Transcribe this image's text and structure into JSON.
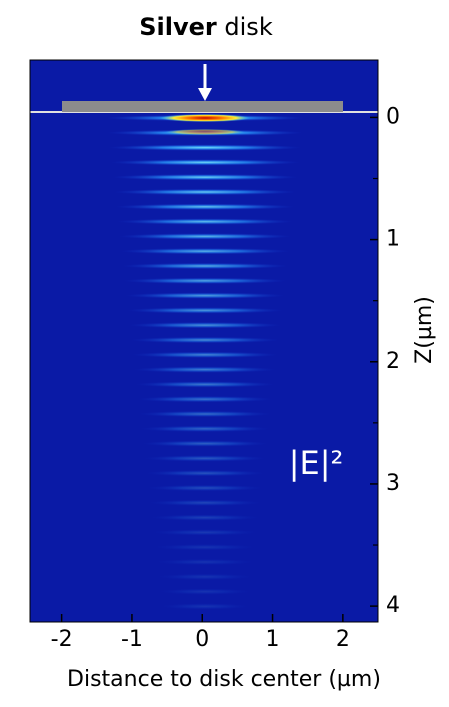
{
  "chart_data": {
    "type": "heatmap",
    "title_bold": "Silver",
    "title_rest": "disk",
    "x_label": "Distance to disk center (µm)",
    "y_label": "Z(µm)",
    "annotation": "|E|²",
    "xlim": [
      -2.45,
      2.5
    ],
    "xticks": [
      -2,
      -1,
      0,
      1,
      2
    ],
    "ylim": [
      -0.47,
      4.13
    ],
    "yticks": [
      0,
      1,
      2,
      3,
      4
    ],
    "y_minor_ticks": [
      0.5,
      1.5,
      2.5,
      3.5
    ],
    "background_color": "#0a1aa6"
  }
}
